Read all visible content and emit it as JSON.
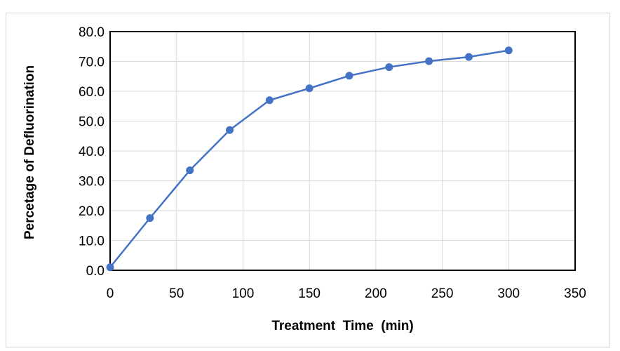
{
  "chart_data": {
    "type": "line",
    "title": "",
    "xlabel": "Treatment  Time  (min)",
    "ylabel": "Percetage of Defluorination",
    "xlim": [
      0,
      350
    ],
    "ylim": [
      0,
      80
    ],
    "x_ticks": [
      "0",
      "50",
      "100",
      "150",
      "200",
      "250",
      "300",
      "350"
    ],
    "y_ticks": [
      "0.0",
      "10.0",
      "20.0",
      "30.0",
      "40.0",
      "50.0",
      "60.0",
      "70.0",
      "80.0"
    ],
    "grid": true,
    "series": [
      {
        "color": "#4472c4",
        "marker": "circle",
        "x": [
          0,
          30,
          60,
          90,
          120,
          150,
          180,
          210,
          240,
          270,
          300
        ],
        "y": [
          1.0,
          17.5,
          33.5,
          47.0,
          57.0,
          61.0,
          65.2,
          68.1,
          70.1,
          71.5,
          73.7
        ]
      }
    ]
  }
}
